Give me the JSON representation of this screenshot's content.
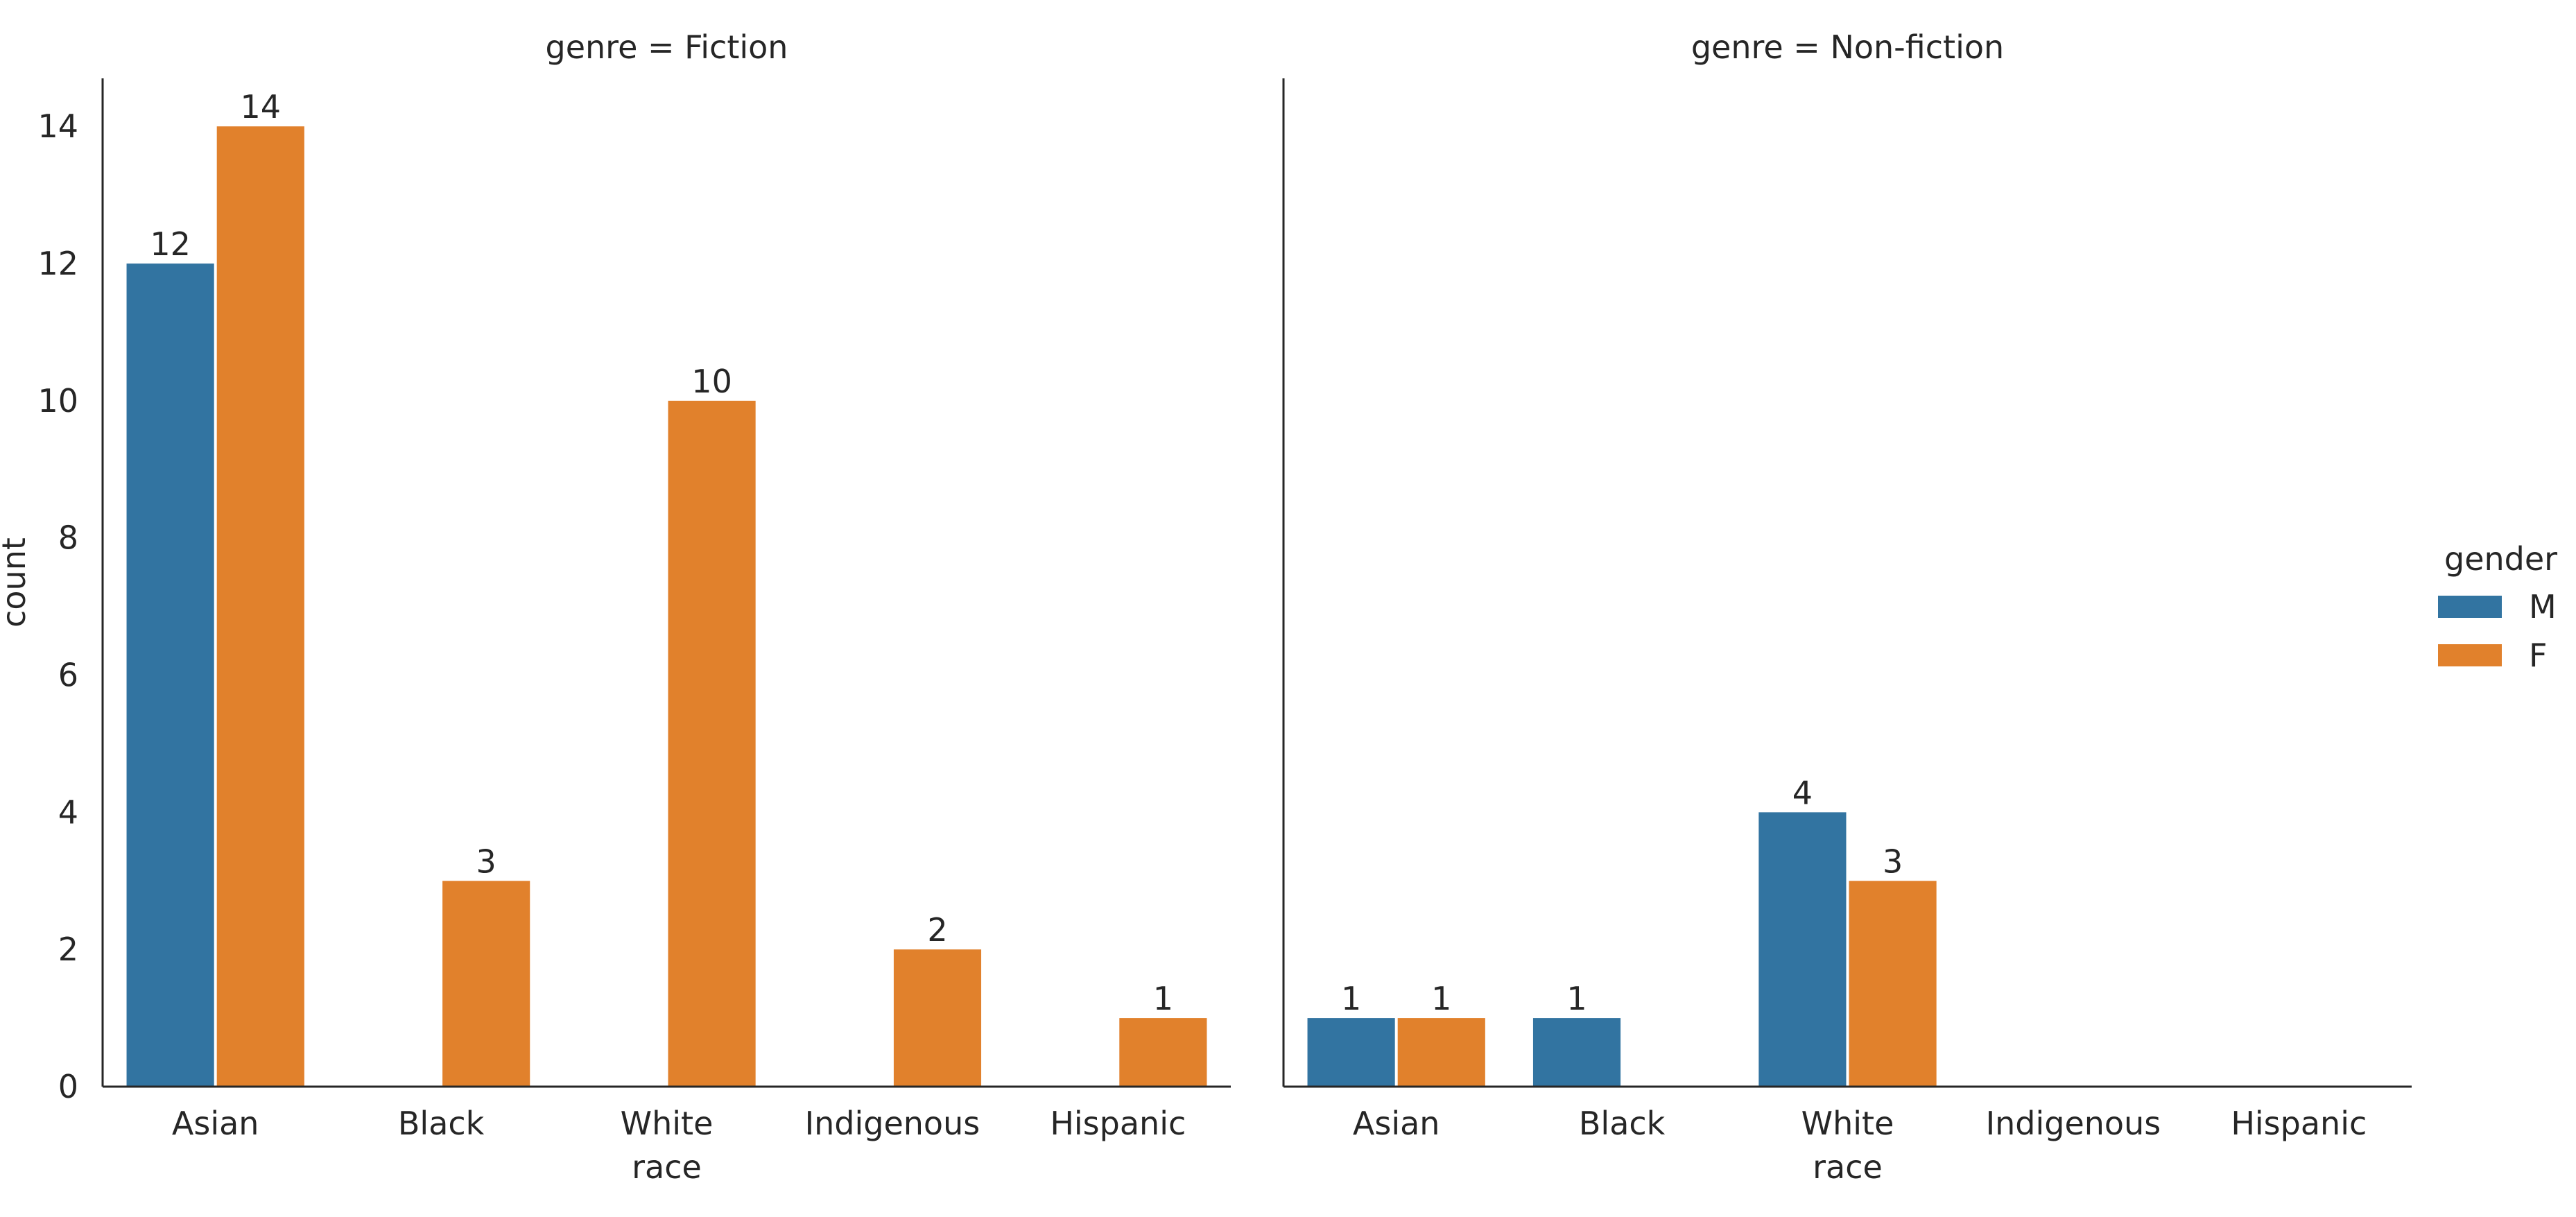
{
  "chart_data": {
    "type": "bar",
    "facet_variable": "genre",
    "facets": [
      {
        "title": "genre = Fiction",
        "categories": [
          "Asian",
          "Black",
          "White",
          "Indigenous",
          "Hispanic"
        ],
        "series": [
          {
            "name": "M",
            "values": [
              12,
              0,
              0,
              0,
              0
            ]
          },
          {
            "name": "F",
            "values": [
              14,
              3,
              10,
              2,
              1
            ]
          }
        ],
        "data_labels": [
          {
            "series": "M",
            "category": "Asian",
            "text": "12"
          },
          {
            "series": "F",
            "category": "Asian",
            "text": "14"
          },
          {
            "series": "F",
            "category": "Black",
            "text": "3"
          },
          {
            "series": "F",
            "category": "White",
            "text": "10"
          },
          {
            "series": "F",
            "category": "Indigenous",
            "text": "2"
          },
          {
            "series": "F",
            "category": "Hispanic",
            "text": "1"
          }
        ]
      },
      {
        "title": "genre = Non-fiction",
        "categories": [
          "Asian",
          "Black",
          "White",
          "Indigenous",
          "Hispanic"
        ],
        "series": [
          {
            "name": "M",
            "values": [
              1,
              1,
              4,
              0,
              0
            ]
          },
          {
            "name": "F",
            "values": [
              1,
              0,
              3,
              0,
              0
            ]
          }
        ],
        "data_labels": [
          {
            "series": "M",
            "category": "Asian",
            "text": "1"
          },
          {
            "series": "F",
            "category": "Asian",
            "text": "1"
          },
          {
            "series": "M",
            "category": "Black",
            "text": "1"
          },
          {
            "series": "M",
            "category": "White",
            "text": "4"
          },
          {
            "series": "F",
            "category": "White",
            "text": "3"
          }
        ]
      }
    ],
    "xlabel": "race",
    "ylabel": "count",
    "ylim": [
      0,
      14.7
    ],
    "yticks": [
      "0",
      "2",
      "4",
      "6",
      "8",
      "10",
      "12",
      "14"
    ],
    "grid": false,
    "legend": {
      "title": "gender",
      "placement": "right",
      "entries": [
        {
          "label": "M",
          "color": "#3274a1"
        },
        {
          "label": "F",
          "color": "#e1812c"
        }
      ]
    }
  }
}
